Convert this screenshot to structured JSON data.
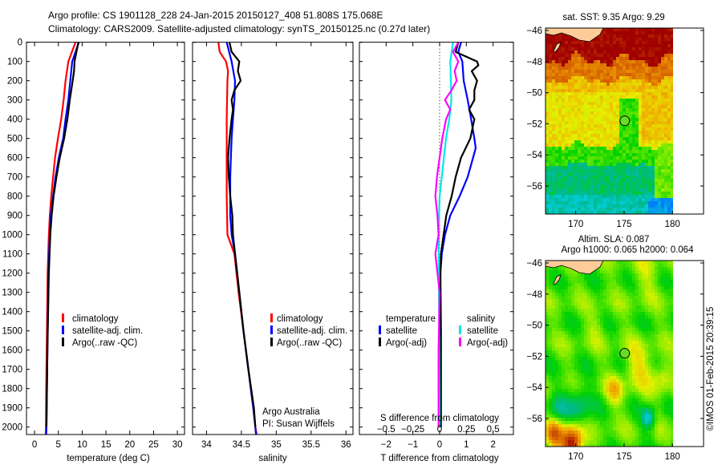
{
  "title": {
    "line1": "Argo profile: CS 1901128_228 24-Jan-2015 20150127_408 51.808S 175.068E",
    "line2": "Climatology: CARS2009. Satellite-adjusted climatology: synTS_20150125.nc (0.27d later)"
  },
  "colors": {
    "climatology": "#ff0000",
    "satellite": "#0000ff",
    "argo": "#000000",
    "sal_satellite": "#00e8e8",
    "sal_argo": "#ff00ff"
  },
  "chart_data": [
    {
      "type": "line",
      "id": "temperature",
      "xlabel": "temperature (deg C)",
      "ylabel": "",
      "xlim": [
        -1.7,
        31.5
      ],
      "ylim": [
        2040,
        0
      ],
      "xticks": [
        0,
        5,
        10,
        15,
        20,
        25,
        30
      ],
      "yticks": [
        0,
        100,
        200,
        300,
        400,
        500,
        600,
        700,
        800,
        900,
        1000,
        1100,
        1200,
        1300,
        1400,
        1500,
        1600,
        1700,
        1800,
        1900,
        2000
      ],
      "legend": [
        "climatology",
        "satellite-adj. clim.",
        "Argo(..raw -QC)"
      ],
      "series": [
        {
          "name": "climatology",
          "color": "#ff0000",
          "depth": [
            0,
            100,
            200,
            300,
            400,
            500,
            600,
            700,
            800,
            900,
            1000,
            1200,
            1400,
            1600,
            1800,
            2000,
            2040
          ],
          "values": [
            8.6,
            7.1,
            6.5,
            6.1,
            5.6,
            4.9,
            4.3,
            3.9,
            3.5,
            3.2,
            3.0,
            2.75,
            2.65,
            2.55,
            2.45,
            2.4,
            2.35
          ]
        },
        {
          "name": "satellite-adj. clim.",
          "color": "#0000ff",
          "depth": [
            0,
            100,
            200,
            300,
            400,
            500,
            600,
            700,
            800,
            900,
            1000,
            1200,
            1400,
            1600,
            1800,
            2000,
            2040
          ],
          "values": [
            9.3,
            7.9,
            7.5,
            7.1,
            6.5,
            6.0,
            5.1,
            4.4,
            3.9,
            3.4,
            3.2,
            2.9,
            2.8,
            2.7,
            2.6,
            2.5,
            2.45
          ]
        },
        {
          "name": "Argo(..raw -QC)",
          "color": "#000000",
          "depth": [
            0,
            100,
            150,
            200,
            300,
            400,
            500,
            600,
            700,
            800,
            900,
            1000,
            1200,
            1400,
            1600,
            1800,
            2000
          ],
          "values": [
            9.2,
            8.4,
            8.3,
            8.0,
            7.4,
            6.9,
            6.2,
            5.3,
            4.6,
            4.0,
            3.6,
            3.3,
            3.0,
            2.85,
            2.7,
            2.6,
            2.5
          ]
        }
      ]
    },
    {
      "type": "line",
      "id": "salinity",
      "xlabel": "salinity",
      "xlim": [
        33.8,
        36.1
      ],
      "ylim": [
        2040,
        0
      ],
      "xticks": [
        34,
        34.5,
        35,
        35.5,
        36
      ],
      "legend": [
        "climatology",
        "satellite-adj. clim.",
        "Argo(..raw -QC)"
      ],
      "annotation": [
        "Argo Australia",
        "PI: Susan Wijffels"
      ],
      "series": [
        {
          "name": "climatology",
          "color": "#ff0000",
          "depth": [
            0,
            50,
            100,
            150,
            200,
            400,
            600,
            800,
            1000,
            1100,
            1300,
            1500,
            1700,
            1900,
            2000,
            2040
          ],
          "values": [
            34.17,
            34.19,
            34.28,
            34.31,
            34.3,
            34.29,
            34.29,
            34.29,
            34.3,
            34.4,
            34.46,
            34.53,
            34.6,
            34.67,
            34.7,
            34.72
          ]
        },
        {
          "name": "satellite-adj. clim.",
          "color": "#0000ff",
          "depth": [
            0,
            100,
            200,
            300,
            400,
            500,
            600,
            700,
            800,
            900,
            1000,
            1100,
            1200,
            1300,
            1500,
            1700,
            1900,
            2000,
            2040
          ],
          "values": [
            34.29,
            34.36,
            34.41,
            34.4,
            34.38,
            34.36,
            34.35,
            34.34,
            34.34,
            34.34,
            34.36,
            34.41,
            34.44,
            34.47,
            34.53,
            34.6,
            34.67,
            34.7,
            34.71
          ]
        },
        {
          "name": "Argo(..raw -QC)",
          "color": "#000000",
          "depth": [
            0,
            50,
            100,
            150,
            200,
            250,
            300,
            350,
            400,
            500,
            600,
            700,
            800,
            900,
            1000,
            1100,
            1300,
            1500,
            1700,
            1900,
            2000
          ],
          "values": [
            34.33,
            34.36,
            34.47,
            34.45,
            34.49,
            34.4,
            34.36,
            34.38,
            34.36,
            34.33,
            34.31,
            34.32,
            34.34,
            34.37,
            34.38,
            34.41,
            34.47,
            34.53,
            34.6,
            34.68,
            34.7
          ]
        }
      ]
    },
    {
      "type": "line",
      "id": "difference",
      "xlabel": "T difference from climatology",
      "x2label": "S difference from climatology",
      "xlim": [
        -3.0,
        2.76
      ],
      "x2lim": [
        -0.75,
        0.69
      ],
      "ylim": [
        2040,
        0
      ],
      "xticks": [
        -2,
        -1,
        0,
        1,
        2
      ],
      "x2ticks": [
        -0.5,
        -0.25,
        0,
        0.25,
        0.5
      ],
      "legend_temperature": {
        "title": "temperature",
        "items": [
          "satellite",
          "Argo(-adj)"
        ]
      },
      "legend_salinity": {
        "title": "salinity",
        "items": [
          "satellite",
          "Argo(-adj)"
        ]
      },
      "series": [
        {
          "name": "T satellite",
          "axis": "T",
          "color": "#0000ff",
          "depth": [
            0,
            50,
            100,
            200,
            300,
            400,
            500,
            550,
            600,
            700,
            800,
            900,
            1000,
            1100,
            1200,
            1400,
            1700,
            2000
          ],
          "values": [
            0.8,
            0.7,
            0.85,
            0.9,
            1.05,
            1.18,
            1.3,
            1.35,
            1.25,
            1.05,
            0.75,
            0.4,
            0.2,
            0.08,
            0.03,
            0.02,
            0.02,
            0.02
          ]
        },
        {
          "name": "T Argo(-adj)",
          "axis": "T",
          "color": "#000000",
          "depth": [
            0,
            50,
            75,
            100,
            120,
            150,
            200,
            250,
            300,
            350,
            400,
            500,
            600,
            700,
            800,
            900,
            1000,
            1100,
            1200,
            1500,
            2000
          ],
          "values": [
            0.7,
            0.6,
            1.0,
            1.4,
            1.45,
            1.2,
            1.4,
            1.3,
            1.3,
            1.1,
            1.3,
            1.15,
            0.8,
            0.6,
            0.45,
            0.25,
            0.15,
            0.05,
            0.03,
            0.05,
            0.05
          ]
        },
        {
          "name": "S satellite",
          "axis": "S",
          "color": "#00e8e8",
          "depth": [
            0,
            100,
            200,
            300,
            400,
            500,
            600,
            700,
            800,
            1000,
            1400,
            2000
          ],
          "values": [
            0.125,
            0.1,
            0.105,
            0.11,
            0.09,
            0.06,
            0.04,
            0.02,
            0.0,
            -0.01,
            -0.005,
            0.0
          ]
        },
        {
          "name": "S Argo(-adj)",
          "axis": "S",
          "color": "#ff00ff",
          "depth": [
            0,
            50,
            100,
            150,
            200,
            250,
            300,
            350,
            400,
            500,
            600,
            700,
            800,
            900,
            1000,
            1100,
            1300,
            1600,
            2000
          ],
          "values": [
            0.175,
            0.125,
            0.175,
            0.14,
            0.16,
            0.11,
            0.05,
            0.1,
            0.06,
            0.025,
            0.0,
            -0.025,
            -0.04,
            -0.02,
            -0.01,
            -0.04,
            0.0,
            -0.01,
            -0.01
          ]
        }
      ]
    },
    {
      "type": "heatmap",
      "id": "sst-map",
      "title": "sat. SST: 9.35 Argo: 9.29",
      "xticks": [
        170,
        175,
        180
      ],
      "yticks": [
        -46,
        -48,
        -50,
        -52,
        -54,
        -56
      ],
      "marker": {
        "lon": 175.068,
        "lat": -51.808
      }
    },
    {
      "type": "heatmap",
      "id": "sla-map",
      "title": "Altim. SLA: 0.087",
      "subtitle": "Argo h1000: 0.065 h2000: 0.064",
      "xticks": [
        170,
        175,
        180
      ],
      "yticks": [
        -46,
        -48,
        -50,
        -52,
        -54,
        -56
      ],
      "marker": {
        "lon": 175.068,
        "lat": -51.808
      }
    }
  ],
  "footer": {
    "credit": "©IMOS 01-Feb-2015 20:39:15"
  }
}
